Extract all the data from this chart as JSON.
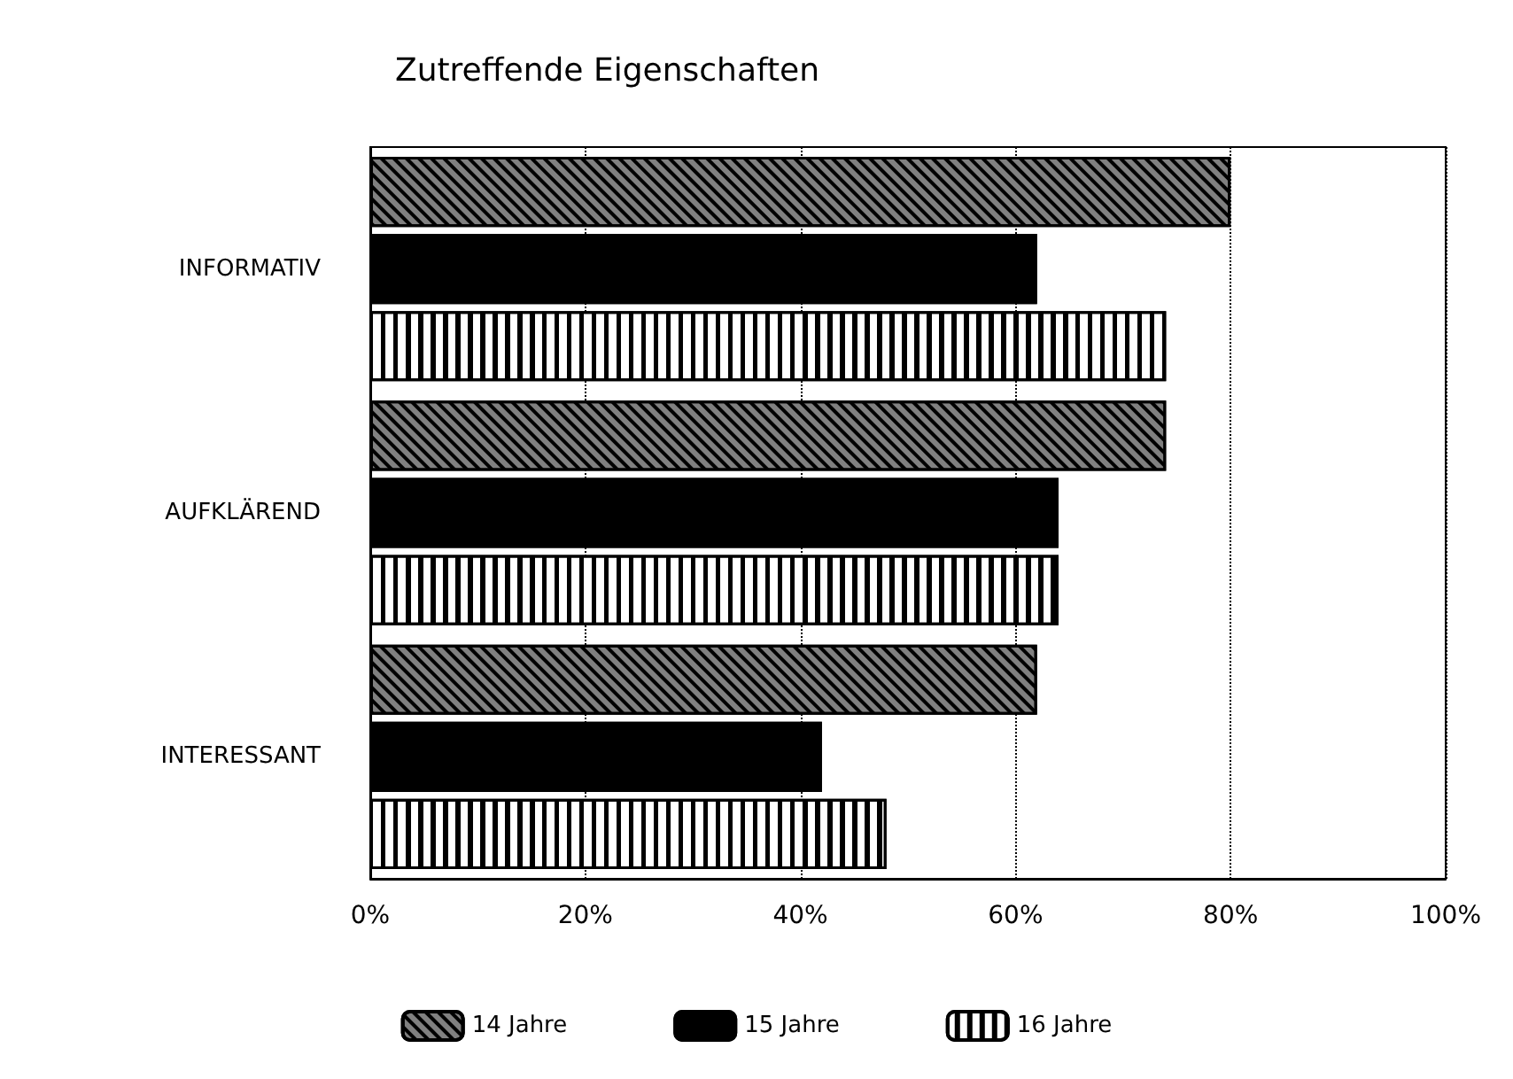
{
  "chart_data": {
    "type": "bar",
    "orientation": "horizontal",
    "title": "Zutreffende Eigenschaften",
    "categories": [
      "INFORMATIV",
      "AUFKLÄREND",
      "INTERESSANT"
    ],
    "series": [
      {
        "name": "14 Jahre",
        "color": "#808080",
        "values": [
          80,
          74,
          62
        ]
      },
      {
        "name": "15 Jahre",
        "color": "#000000",
        "values": [
          62,
          64,
          42
        ]
      },
      {
        "name": "16 Jahre",
        "color": "#ffffff",
        "values": [
          74,
          64,
          48
        ]
      }
    ],
    "xlim": [
      0,
      100
    ],
    "xticks": [
      {
        "value": 0,
        "label": "0%"
      },
      {
        "value": 20,
        "label": "20%"
      },
      {
        "value": 40,
        "label": "40%"
      },
      {
        "value": 60,
        "label": "60%"
      },
      {
        "value": 80,
        "label": "80%"
      },
      {
        "value": 100,
        "label": "100%"
      }
    ],
    "grid": "x",
    "legend": "bottom"
  }
}
